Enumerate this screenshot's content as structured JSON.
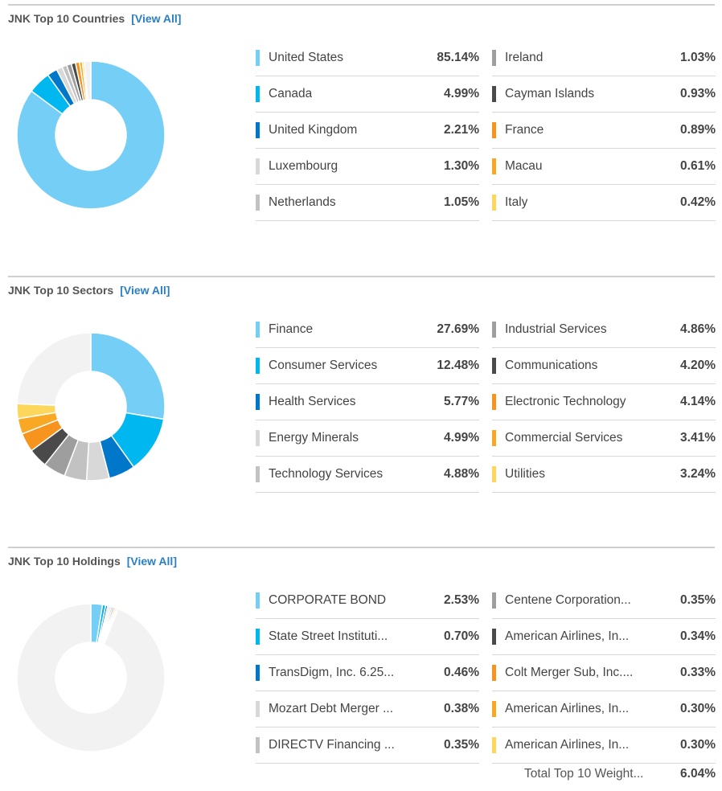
{
  "palette": [
    "#74cef6",
    "#00b8ef",
    "#0077c8",
    "#d8d8d8",
    "#c2c2c2",
    "#9e9e9e",
    "#4a4a4a",
    "#f7941d",
    "#f9a825",
    "#fcd75b"
  ],
  "remainder_color": "#f2f2f2",
  "view_all_label": "[View All]",
  "chart_data": [
    {
      "type": "pie",
      "title": "JNK Top 10 Countries",
      "categories": [
        "United States",
        "Canada",
        "United Kingdom",
        "Luxembourg",
        "Netherlands",
        "Ireland",
        "Cayman Islands",
        "France",
        "Macau",
        "Italy"
      ],
      "values": [
        85.14,
        4.99,
        2.21,
        1.3,
        1.05,
        1.03,
        0.93,
        0.89,
        0.61,
        0.42
      ],
      "display": [
        "85.14%",
        "4.99%",
        "2.21%",
        "1.30%",
        "1.05%",
        "1.03%",
        "0.93%",
        "0.89%",
        "0.61%",
        "0.42%"
      ]
    },
    {
      "type": "pie",
      "title": "JNK Top 10 Sectors",
      "categories": [
        "Finance",
        "Consumer Services",
        "Health Services",
        "Energy Minerals",
        "Technology Services",
        "Industrial Services",
        "Communications",
        "Electronic Technology",
        "Commercial Services",
        "Utilities"
      ],
      "values": [
        27.69,
        12.48,
        5.77,
        4.99,
        4.88,
        4.86,
        4.2,
        4.14,
        3.41,
        3.24
      ],
      "display": [
        "27.69%",
        "12.48%",
        "5.77%",
        "4.99%",
        "4.88%",
        "4.86%",
        "4.20%",
        "4.14%",
        "3.41%",
        "3.24%"
      ]
    },
    {
      "type": "pie",
      "title": "JNK Top 10 Holdings",
      "categories": [
        "CORPORATE BOND",
        "State Street Instituti...",
        "TransDigm, Inc. 6.25...",
        "Mozart Debt Merger ...",
        "DIRECTV Financing ...",
        "Centene Corporation...",
        "American Airlines, In...",
        "Colt Merger Sub, Inc....",
        "American Airlines, In...",
        "American Airlines, In..."
      ],
      "values": [
        2.53,
        0.7,
        0.46,
        0.38,
        0.35,
        0.35,
        0.34,
        0.33,
        0.3,
        0.3
      ],
      "display": [
        "2.53%",
        "0.70%",
        "0.46%",
        "0.38%",
        "0.35%",
        "0.35%",
        "0.34%",
        "0.33%",
        "0.30%",
        "0.30%"
      ],
      "total_label": "Total Top 10 Weight...",
      "total_value": "6.04%"
    }
  ]
}
